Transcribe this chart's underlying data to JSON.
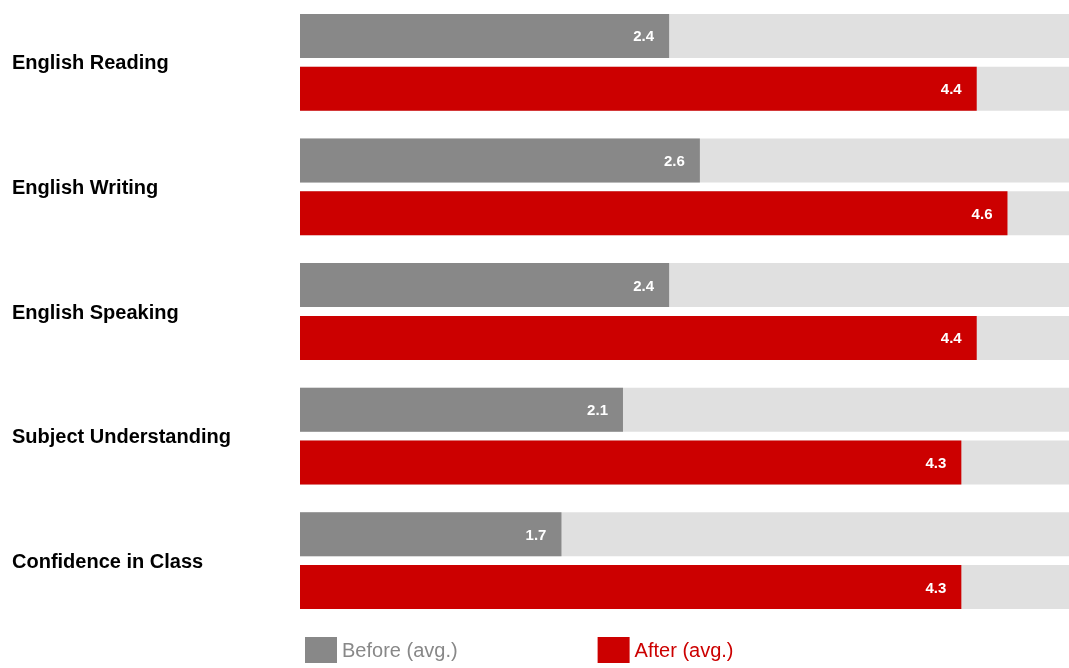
{
  "chart_data": {
    "type": "bar",
    "orientation": "horizontal",
    "categories": [
      "English Reading",
      "English Writing",
      "English Speaking",
      "Subject Understanding",
      "Confidence in Class"
    ],
    "series": [
      {
        "name": "Before (avg.)",
        "color": "#888888",
        "values": [
          2.4,
          2.6,
          2.4,
          2.1,
          1.7
        ]
      },
      {
        "name": "After (avg.)",
        "color": "#cc0000",
        "values": [
          4.4,
          4.6,
          4.4,
          4.3,
          4.3
        ]
      }
    ],
    "xlim": [
      0,
      5
    ],
    "data_labels": true,
    "legend": "bottom",
    "grid": false,
    "tick_labels": "y"
  }
}
